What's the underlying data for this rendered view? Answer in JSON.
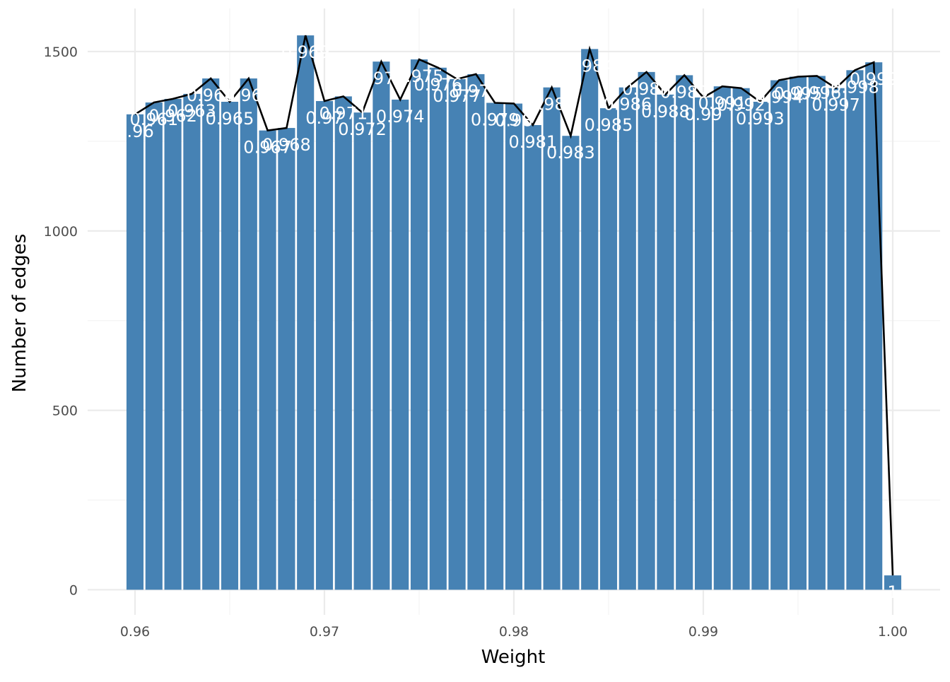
{
  "chart_data": {
    "type": "bar",
    "xlabel": "Weight",
    "ylabel": "Number of edges",
    "xlim": [
      0.9575,
      1.0025
    ],
    "ylim": [
      -70,
      1620
    ],
    "x_ticks": [
      0.96,
      0.97,
      0.98,
      0.99,
      1.0
    ],
    "x_tick_labels": [
      "0.96",
      "0.97",
      "0.98",
      "0.99",
      "1.00"
    ],
    "y_ticks": [
      0,
      500,
      1000,
      1500
    ],
    "y_tick_labels": [
      "0",
      "500",
      "1000",
      "1500"
    ],
    "grid": true,
    "bar_color": "#4682b4",
    "line_color": "#000000",
    "bars": [
      {
        "x": 0.96,
        "value": 1325,
        "label": "0.96"
      },
      {
        "x": 0.961,
        "value": 1358,
        "label": "0.961"
      },
      {
        "x": 0.962,
        "value": 1368,
        "label": "0.962"
      },
      {
        "x": 0.963,
        "value": 1382,
        "label": "0.963"
      },
      {
        "x": 0.964,
        "value": 1425,
        "label": "0.964"
      },
      {
        "x": 0.965,
        "value": 1360,
        "label": "0.965"
      },
      {
        "x": 0.966,
        "value": 1425,
        "label": "0.966"
      },
      {
        "x": 0.967,
        "value": 1280,
        "label": "0.967"
      },
      {
        "x": 0.968,
        "value": 1287,
        "label": "0.968"
      },
      {
        "x": 0.969,
        "value": 1545,
        "label": "0.969"
      },
      {
        "x": 0.97,
        "value": 1362,
        "label": "0.97"
      },
      {
        "x": 0.971,
        "value": 1375,
        "label": "0.971"
      },
      {
        "x": 0.972,
        "value": 1330,
        "label": "0.972"
      },
      {
        "x": 0.973,
        "value": 1472,
        "label": "0.973"
      },
      {
        "x": 0.974,
        "value": 1366,
        "label": "0.974"
      },
      {
        "x": 0.975,
        "value": 1478,
        "label": "0.975"
      },
      {
        "x": 0.976,
        "value": 1455,
        "label": "0.976"
      },
      {
        "x": 0.977,
        "value": 1423,
        "label": "0.977"
      },
      {
        "x": 0.978,
        "value": 1437,
        "label": "0.978"
      },
      {
        "x": 0.979,
        "value": 1357,
        "label": "0.979"
      },
      {
        "x": 0.98,
        "value": 1355,
        "label": "0.98"
      },
      {
        "x": 0.981,
        "value": 1295,
        "label": "0.981"
      },
      {
        "x": 0.982,
        "value": 1400,
        "label": "0.982"
      },
      {
        "x": 0.983,
        "value": 1265,
        "label": "0.983"
      },
      {
        "x": 0.984,
        "value": 1507,
        "label": "0.984"
      },
      {
        "x": 0.985,
        "value": 1342,
        "label": "0.985"
      },
      {
        "x": 0.986,
        "value": 1400,
        "label": "0.986"
      },
      {
        "x": 0.987,
        "value": 1443,
        "label": "0.987"
      },
      {
        "x": 0.988,
        "value": 1380,
        "label": "0.988"
      },
      {
        "x": 0.989,
        "value": 1434,
        "label": "0.989"
      },
      {
        "x": 0.99,
        "value": 1372,
        "label": "0.99"
      },
      {
        "x": 0.991,
        "value": 1403,
        "label": "0.991"
      },
      {
        "x": 0.992,
        "value": 1398,
        "label": "0.992"
      },
      {
        "x": 0.993,
        "value": 1360,
        "label": "0.993"
      },
      {
        "x": 0.994,
        "value": 1420,
        "label": "0.994"
      },
      {
        "x": 0.995,
        "value": 1430,
        "label": "0.995"
      },
      {
        "x": 0.996,
        "value": 1432,
        "label": "0.996"
      },
      {
        "x": 0.997,
        "value": 1398,
        "label": "0.997"
      },
      {
        "x": 0.998,
        "value": 1448,
        "label": "0.998"
      },
      {
        "x": 0.999,
        "value": 1470,
        "label": "0.999"
      },
      {
        "x": 1.0,
        "value": 40,
        "label": "1"
      }
    ]
  }
}
